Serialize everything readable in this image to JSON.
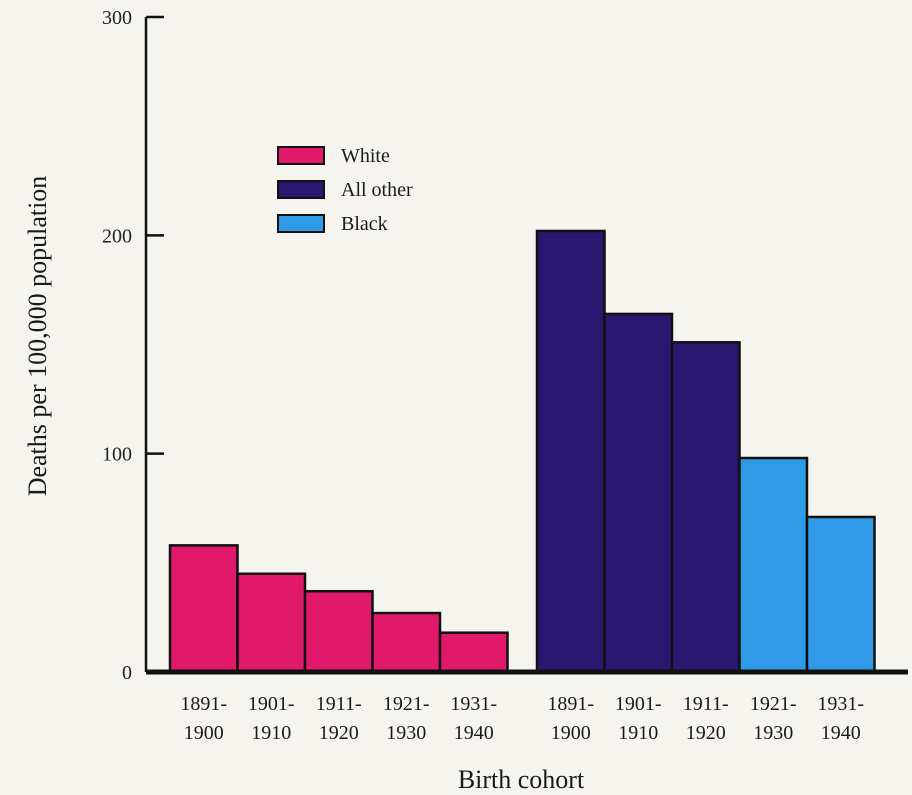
{
  "chart_data": {
    "type": "bar",
    "title": "",
    "xlabel": "Birth cohort",
    "ylabel": "Deaths per 100,000 population",
    "ylim": [
      0,
      300
    ],
    "yticks": [
      "0",
      "100",
      "200",
      "300"
    ],
    "grid": false,
    "legend_position": "top-left",
    "legend": [
      {
        "name": "White",
        "color": "#e0196a"
      },
      {
        "name": "All other",
        "color": "#2a1870"
      },
      {
        "name": "Black",
        "color": "#2f9be6"
      }
    ],
    "groups": [
      {
        "categories": [
          [
            "1891-",
            "1900"
          ],
          [
            "1901-",
            "1910"
          ],
          [
            "1911-",
            "1920"
          ],
          [
            "1921-",
            "1930"
          ],
          [
            "1931-",
            "1940"
          ]
        ],
        "values": [
          58,
          45,
          37,
          27,
          18
        ],
        "series": [
          "White",
          "White",
          "White",
          "White",
          "White"
        ]
      },
      {
        "categories": [
          [
            "1891-",
            "1900"
          ],
          [
            "1901-",
            "1910"
          ],
          [
            "1911-",
            "1920"
          ],
          [
            "1921-",
            "1930"
          ],
          [
            "1931-",
            "1940"
          ]
        ],
        "values": [
          202,
          164,
          151,
          98,
          71
        ],
        "series": [
          "All other",
          "All other",
          "All other",
          "Black",
          "Black"
        ]
      }
    ]
  }
}
